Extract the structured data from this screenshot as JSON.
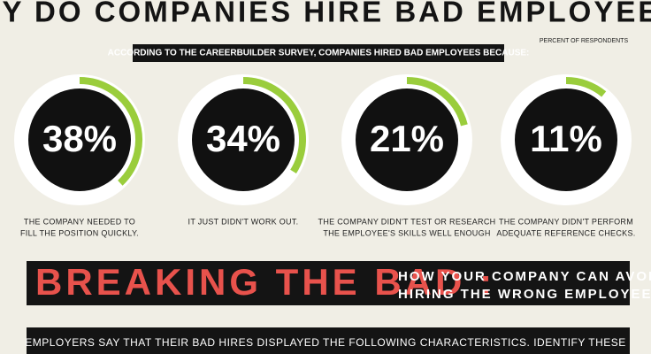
{
  "header": {
    "title": "WHY DO COMPANIES HIRE BAD EMPLOYEES?",
    "banner": "ACCORDING TO THE CAREERBUILDER SURVEY, COMPANIES HIRED BAD EMPLOYEES BECAUSE:",
    "note": "PERCENT OF RESPONDENTS"
  },
  "stats": [
    {
      "value": 38,
      "value_label": "38%",
      "caption": [
        "THE COMPANY NEEDED TO",
        "FILL THE POSITION QUICKLY."
      ]
    },
    {
      "value": 34,
      "value_label": "34%",
      "caption": [
        "IT JUST DIDN'T WORK OUT."
      ]
    },
    {
      "value": 21,
      "value_label": "21%",
      "caption": [
        "THE COMPANY DIDN'T TEST OR RESEARCH",
        "THE EMPLOYEE'S SKILLS WELL ENOUGH"
      ]
    },
    {
      "value": 11,
      "value_label": "11%",
      "caption": [
        "THE COMPANY DIDN'T PERFORM",
        "ADEQUATE REFERENCE CHECKS."
      ]
    }
  ],
  "section": {
    "heading": "BREAKING THE BAD :",
    "subheading": [
      "HOW YOUR COMPANY CAN AVOID",
      "HIRING THE WRONG EMPLOYEES"
    ]
  },
  "intro": "EMPLOYERS SAY THAT THEIR BAD HIRES DISPLAYED THE FOLLOWING CHARACTERISTICS. IDENTIFY THESE"
}
